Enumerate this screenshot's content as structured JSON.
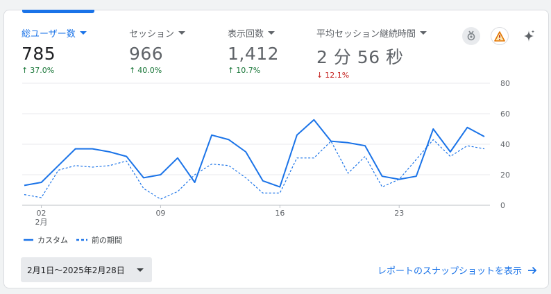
{
  "metrics": [
    {
      "label": "総ユーザー数",
      "value": "785",
      "change": "37.0%",
      "direction": "up"
    },
    {
      "label": "セッション",
      "value": "966",
      "change": "40.0%",
      "direction": "up"
    },
    {
      "label": "表示回数",
      "value": "1,412",
      "change": "10.7%",
      "direction": "up"
    },
    {
      "label": "平均セッション継続時間",
      "value": "2 分 56 秒",
      "change": "12.1%",
      "direction": "down"
    }
  ],
  "header_icons": [
    "insights-badge-icon",
    "warning-icon",
    "sparkle-icon"
  ],
  "colors": {
    "accent": "#1a73e8",
    "up": "#137333",
    "down": "#c5221f",
    "warning": "#e37400"
  },
  "chart_data": {
    "type": "line",
    "x": [
      1,
      2,
      3,
      4,
      5,
      6,
      7,
      8,
      9,
      10,
      11,
      12,
      13,
      14,
      15,
      16,
      17,
      18,
      19,
      20,
      21,
      22,
      23,
      24,
      25,
      26,
      27,
      28
    ],
    "series": [
      {
        "name": "カスタム",
        "style": "solid",
        "values": [
          13,
          15,
          26,
          37,
          37,
          35,
          32,
          18,
          20,
          31,
          15,
          46,
          43,
          35,
          16,
          12,
          46,
          56,
          42,
          41,
          39,
          19,
          17,
          19,
          50,
          35,
          51,
          45
        ]
      },
      {
        "name": "前の期間",
        "style": "dashed",
        "values": [
          7,
          5,
          23,
          26,
          25,
          26,
          29,
          11,
          4,
          9,
          20,
          27,
          26,
          18,
          8,
          8,
          31,
          31,
          42,
          21,
          32,
          12,
          17,
          30,
          43,
          32,
          39,
          37
        ]
      }
    ],
    "ylim": [
      0,
      80
    ],
    "yticks": [
      0,
      20,
      40,
      60,
      80
    ],
    "xtick_labels": [
      {
        "x": 2,
        "label": "02",
        "sublabel": "2月"
      },
      {
        "x": 9,
        "label": "09",
        "sublabel": ""
      },
      {
        "x": 16,
        "label": "16",
        "sublabel": ""
      },
      {
        "x": 23,
        "label": "23",
        "sublabel": ""
      }
    ],
    "grid": true
  },
  "date_range": {
    "label": "2月1日～2025年2月28日"
  },
  "snapshot_link": {
    "label": "レポートのスナップショットを表示"
  }
}
